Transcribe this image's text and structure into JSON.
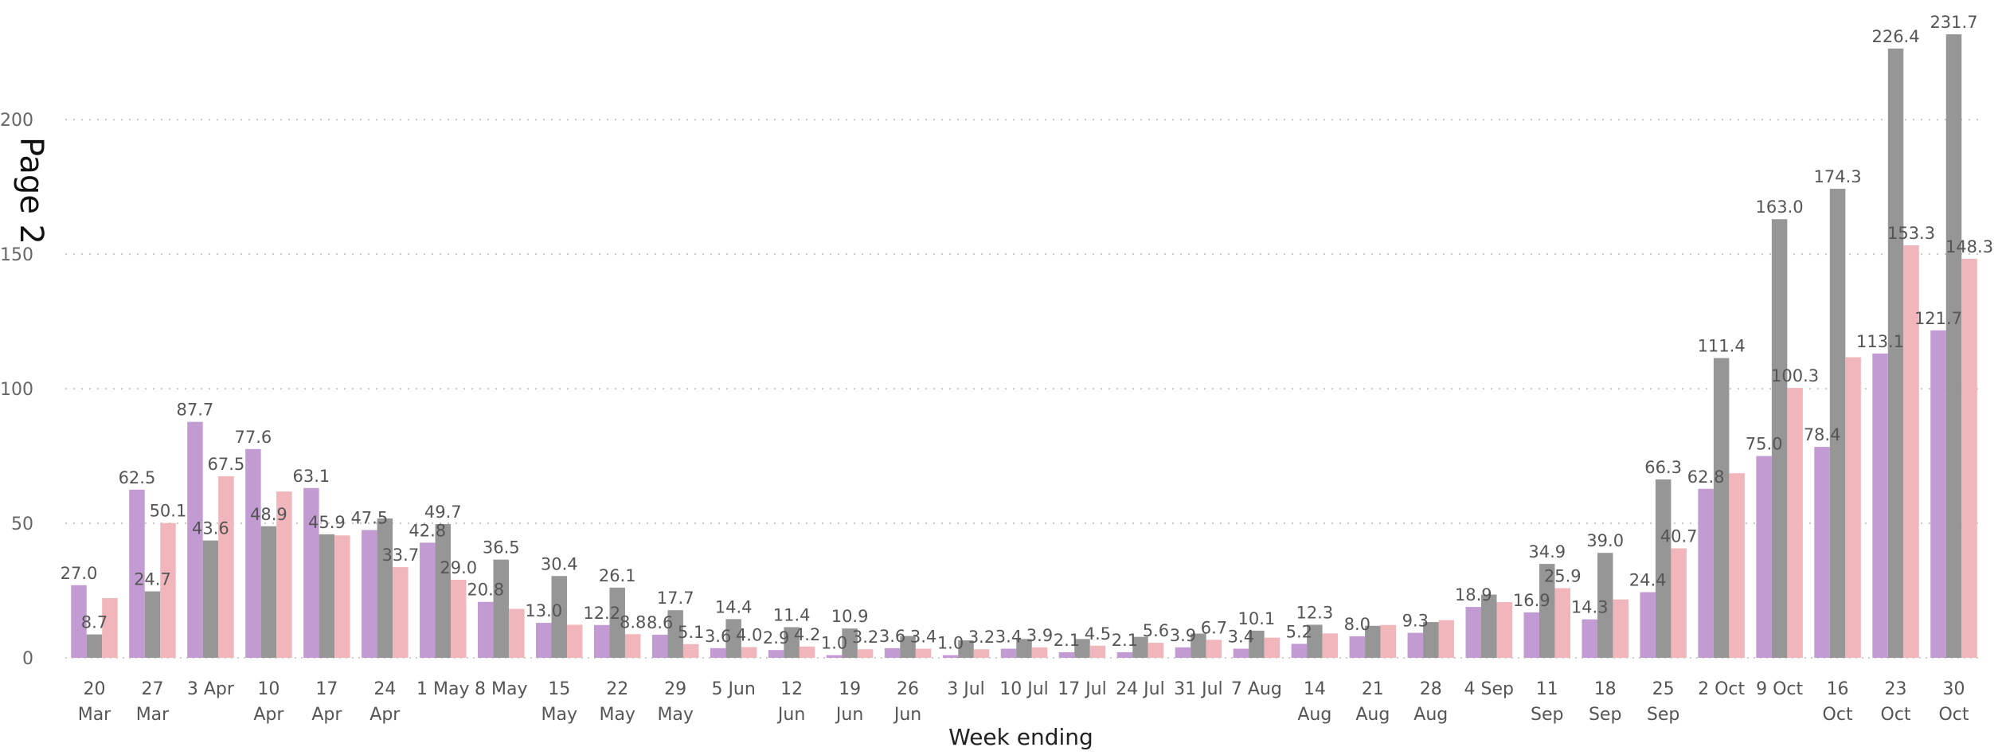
{
  "page_title": "Page 2",
  "chart_data": {
    "type": "bar",
    "xlabel": "Week ending",
    "ylabel": "",
    "ylim": [
      0,
      235
    ],
    "yticks": [
      0,
      50,
      100,
      150,
      200
    ],
    "grid": "horizontal-dotted",
    "legend": "none",
    "colors": [
      "#c39bd3",
      "#969696",
      "#f1b6bb"
    ],
    "categories": [
      [
        "20",
        "Mar"
      ],
      [
        "27",
        "Mar"
      ],
      [
        "3 Apr"
      ],
      [
        "10",
        "Apr"
      ],
      [
        "17",
        "Apr"
      ],
      [
        "24",
        "Apr"
      ],
      [
        "1 May"
      ],
      [
        "8 May"
      ],
      [
        "15",
        "May"
      ],
      [
        "22",
        "May"
      ],
      [
        "29",
        "May"
      ],
      [
        "5 Jun"
      ],
      [
        "12",
        "Jun"
      ],
      [
        "19",
        "Jun"
      ],
      [
        "26",
        "Jun"
      ],
      [
        "3 Jul"
      ],
      [
        "10 Jul"
      ],
      [
        "17 Jul"
      ],
      [
        "24 Jul"
      ],
      [
        "31 Jul"
      ],
      [
        "7 Aug"
      ],
      [
        "14",
        "Aug"
      ],
      [
        "21",
        "Aug"
      ],
      [
        "28",
        "Aug"
      ],
      [
        "4 Sep"
      ],
      [
        "11",
        "Sep"
      ],
      [
        "18",
        "Sep"
      ],
      [
        "25",
        "Sep"
      ],
      [
        "2 Oct"
      ],
      [
        "9 Oct"
      ],
      [
        "16",
        "Oct"
      ],
      [
        "23",
        "Oct"
      ],
      [
        "30",
        "Oct"
      ]
    ],
    "series": [
      {
        "values": [
          27.0,
          62.5,
          87.7,
          77.6,
          63.1,
          47.5,
          42.8,
          20.8,
          13.0,
          12.2,
          8.6,
          3.6,
          2.9,
          1.0,
          3.6,
          1.0,
          3.4,
          2.1,
          2.1,
          3.9,
          3.4,
          5.2,
          8.0,
          9.3,
          18.9,
          16.9,
          14.3,
          24.4,
          62.8,
          75.0,
          78.4,
          113.1,
          121.7
        ],
        "labels": [
          "27.0",
          "62.5",
          "87.7",
          "77.6",
          "63.1",
          "47.5",
          "42.8",
          "20.8",
          "13.0",
          "12.2",
          "8.6",
          "3.6",
          "2.9",
          "1.0",
          "3.6",
          "1.0",
          "3.4",
          "2.1",
          "2.1",
          "3.9",
          "3.4",
          "5.2",
          "8.0",
          "9.3",
          "18.9",
          "16.9",
          "14.3",
          "24.4",
          "62.8",
          "75.0",
          "78.4",
          "113.1",
          "121.7"
        ]
      },
      {
        "values": [
          8.7,
          24.7,
          43.6,
          48.9,
          45.9,
          51.8,
          49.7,
          36.5,
          30.4,
          26.1,
          17.7,
          14.4,
          11.4,
          10.9,
          8.1,
          6.5,
          7.0,
          7.0,
          7.8,
          9.0,
          10.1,
          12.3,
          11.9,
          13.3,
          23.5,
          34.9,
          39.0,
          66.3,
          111.4,
          163.0,
          174.3,
          226.4,
          231.7
        ],
        "labels": [
          "8.7",
          "24.7",
          "43.6",
          "48.9",
          "45.9",
          "",
          "49.7",
          "36.5",
          "30.4",
          "26.1",
          "17.7",
          "14.4",
          "11.4",
          "10.9",
          "",
          "",
          "",
          "",
          "",
          "",
          "10.1",
          "12.3",
          "",
          "",
          "",
          "34.9",
          "39.0",
          "66.3",
          "111.4",
          "163.0",
          "174.3",
          "226.4",
          "231.7"
        ]
      },
      {
        "values": [
          22.2,
          50.1,
          67.5,
          61.8,
          45.5,
          33.7,
          29.0,
          18.2,
          12.3,
          8.8,
          5.1,
          4.0,
          4.2,
          3.2,
          3.4,
          3.2,
          3.9,
          4.5,
          5.6,
          6.7,
          7.5,
          9.1,
          12.2,
          14.0,
          20.7,
          25.9,
          21.7,
          40.7,
          68.6,
          100.3,
          111.7,
          153.3,
          148.3
        ],
        "labels": [
          "",
          "50.1",
          "67.5",
          "",
          "",
          "33.7",
          "29.0",
          "",
          "",
          "8.8",
          "5.1",
          "4.0",
          "4.2",
          "3.2",
          "3.4",
          "3.2",
          "3.9",
          "4.5",
          "5.6",
          "6.7",
          "",
          "",
          "",
          "",
          "",
          "25.9",
          "",
          "40.7",
          "",
          "100.3",
          "",
          "153.3",
          "148.3"
        ]
      }
    ]
  }
}
